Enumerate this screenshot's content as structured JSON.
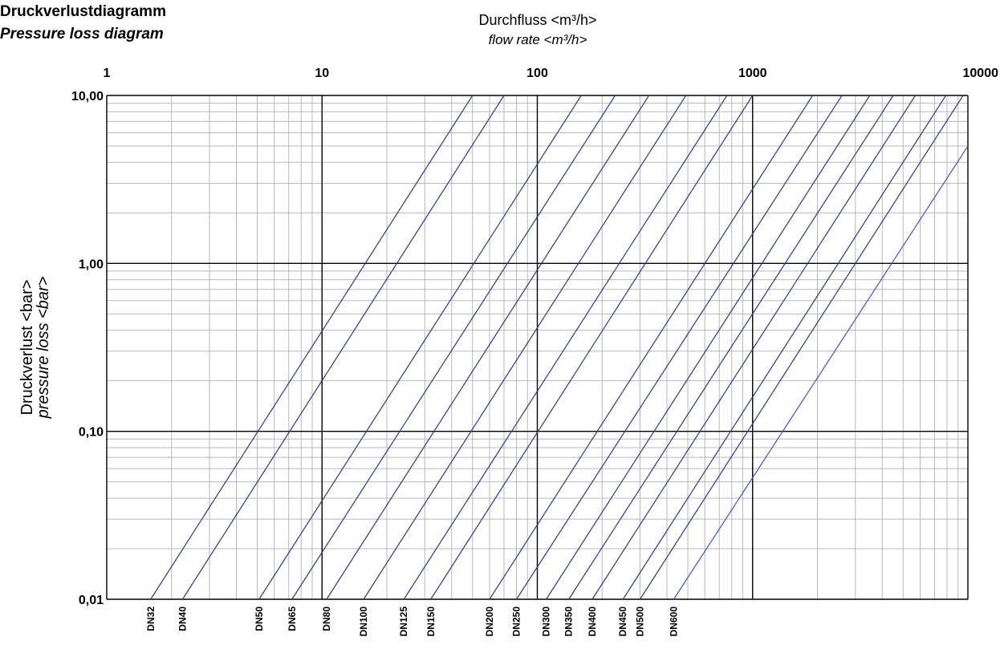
{
  "chart_data": {
    "type": "line",
    "title": "Druckverlustdiagramm",
    "subtitle": "Pressure loss diagram",
    "xlabel": "Durchfluss <m³/h>",
    "xlabel_en": "flow rate <m³/h>",
    "ylabel": "Druckverlust <bar>",
    "ylabel_en": "pressure loss <bar>",
    "x_scale": "log",
    "y_scale": "log",
    "xlim": [
      1,
      10000
    ],
    "ylim": [
      0.01,
      10
    ],
    "x_ticks": [
      "1",
      "10",
      "100",
      "1000",
      "10000"
    ],
    "y_ticks": [
      "0,01",
      "0,10",
      "1,00",
      "10,00"
    ],
    "grid": true,
    "line_color": "#2b3a8c",
    "last_line_color": "#3a55c8",
    "series": [
      {
        "name": "DN32",
        "points": [
          [
            1.6,
            0.01
          ],
          [
            50,
            10
          ]
        ]
      },
      {
        "name": "DN40",
        "points": [
          [
            2.25,
            0.01
          ],
          [
            70,
            10
          ]
        ]
      },
      {
        "name": "DN50",
        "points": [
          [
            5.1,
            0.01
          ],
          [
            160,
            10
          ]
        ]
      },
      {
        "name": "DN65",
        "points": [
          [
            7.25,
            0.01
          ],
          [
            230,
            10
          ]
        ]
      },
      {
        "name": "DN80",
        "points": [
          [
            10.5,
            0.01
          ],
          [
            330,
            10
          ]
        ]
      },
      {
        "name": "DN100",
        "points": [
          [
            15.6,
            0.01
          ],
          [
            490,
            10
          ]
        ]
      },
      {
        "name": "DN125",
        "points": [
          [
            24,
            0.01
          ],
          [
            760,
            10
          ]
        ]
      },
      {
        "name": "DN150",
        "points": [
          [
            32,
            0.01
          ],
          [
            1000,
            10
          ]
        ]
      },
      {
        "name": "DN200",
        "points": [
          [
            60,
            0.01
          ],
          [
            1900,
            10
          ]
        ]
      },
      {
        "name": "DN250",
        "points": [
          [
            80,
            0.01
          ],
          [
            2600,
            10
          ]
        ]
      },
      {
        "name": "DN300",
        "points": [
          [
            110,
            0.01
          ],
          [
            3500,
            10
          ]
        ]
      },
      {
        "name": "DN350",
        "points": [
          [
            140,
            0.01
          ],
          [
            4500,
            10
          ]
        ]
      },
      {
        "name": "DN400",
        "points": [
          [
            180,
            0.01
          ],
          [
            5700,
            10
          ]
        ]
      },
      {
        "name": "DN450",
        "points": [
          [
            250,
            0.01
          ],
          [
            7900,
            10
          ]
        ]
      },
      {
        "name": "DN500",
        "points": [
          [
            300,
            0.01
          ],
          [
            9500,
            10
          ]
        ]
      },
      {
        "name": "DN600",
        "points": [
          [
            430,
            0.01
          ],
          [
            10000,
            5
          ]
        ]
      }
    ]
  }
}
